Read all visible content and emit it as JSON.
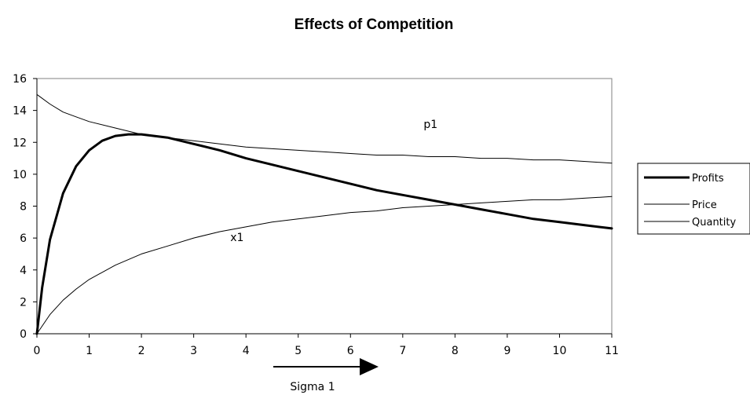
{
  "chart_data": {
    "type": "line",
    "title": "Effects of Competition",
    "xlabel": "Sigma 1",
    "ylabel": "",
    "xlim": [
      0,
      11
    ],
    "ylim": [
      0,
      16
    ],
    "xticks": [
      "0",
      "1",
      "2",
      "3",
      "4",
      "5",
      "6",
      "7",
      "8",
      "9",
      "10",
      "11"
    ],
    "yticks": [
      "0",
      "2",
      "4",
      "6",
      "8",
      "10",
      "12",
      "14",
      "16"
    ],
    "grid": false,
    "legend_position": "right",
    "annotations": [
      {
        "text": "p1",
        "x": 7.4,
        "y": 12.9
      },
      {
        "text": "x1",
        "x": 3.7,
        "y": 5.8
      }
    ],
    "series": [
      {
        "name": "Profits",
        "line_width": "thick",
        "x": [
          0,
          0.1,
          0.25,
          0.5,
          0.75,
          1,
          1.25,
          1.5,
          1.75,
          2,
          2.5,
          3,
          3.5,
          4,
          4.5,
          5,
          5.5,
          6,
          6.5,
          7,
          7.5,
          8,
          8.5,
          9,
          9.5,
          10,
          10.5,
          11
        ],
        "values": [
          0,
          2.9,
          5.9,
          8.8,
          10.5,
          11.5,
          12.1,
          12.4,
          12.5,
          12.5,
          12.3,
          11.9,
          11.5,
          11.0,
          10.6,
          10.2,
          9.8,
          9.4,
          9.0,
          8.7,
          8.4,
          8.1,
          7.8,
          7.5,
          7.2,
          7.0,
          6.8,
          6.6
        ]
      },
      {
        "name": "Price",
        "line_width": "thin",
        "x": [
          0,
          0.25,
          0.5,
          0.75,
          1,
          1.5,
          2,
          2.5,
          3,
          3.5,
          4,
          4.5,
          5,
          5.5,
          6,
          6.5,
          7,
          7.5,
          8,
          8.5,
          9,
          9.5,
          10,
          10.5,
          11
        ],
        "values": [
          15.0,
          14.4,
          13.9,
          13.6,
          13.3,
          12.9,
          12.5,
          12.3,
          12.1,
          11.9,
          11.7,
          11.6,
          11.5,
          11.4,
          11.3,
          11.2,
          11.2,
          11.1,
          11.1,
          11.0,
          11.0,
          10.9,
          10.9,
          10.8,
          10.7
        ]
      },
      {
        "name": "Quantity",
        "line_width": "thin",
        "x": [
          0,
          0.25,
          0.5,
          0.75,
          1,
          1.5,
          2,
          2.5,
          3,
          3.5,
          4,
          4.5,
          5,
          5.5,
          6,
          6.5,
          7,
          7.5,
          8,
          8.5,
          9,
          9.5,
          10,
          10.5,
          11
        ],
        "values": [
          0,
          1.2,
          2.1,
          2.8,
          3.4,
          4.3,
          5.0,
          5.5,
          6.0,
          6.4,
          6.7,
          7.0,
          7.2,
          7.4,
          7.6,
          7.7,
          7.9,
          8.0,
          8.1,
          8.2,
          8.3,
          8.4,
          8.4,
          8.5,
          8.6
        ]
      }
    ]
  }
}
